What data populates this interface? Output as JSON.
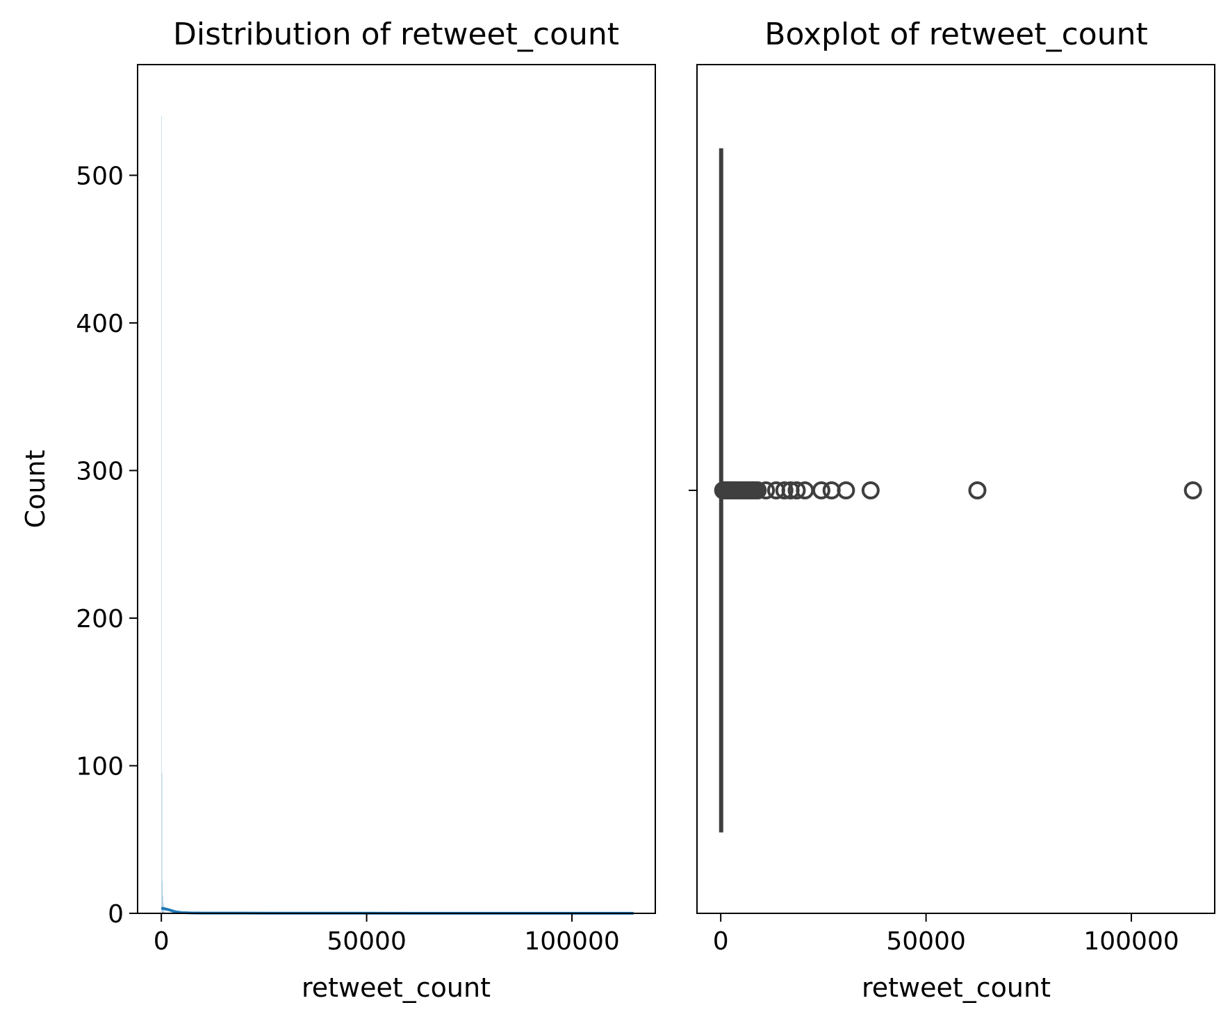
{
  "colors": {
    "hist_fill": "#1f77b4",
    "kde_line": "#1f77b4",
    "box_line": "#3f3f3f",
    "axes": "#000000"
  },
  "chart_data": [
    {
      "type": "histogram",
      "title": "Distribution of retweet_count",
      "xlabel": "retweet_count",
      "ylabel": "Count",
      "xlim": [
        -5780,
        120300
      ],
      "ylim": [
        0,
        575
      ],
      "xticks": [
        0,
        50000,
        100000
      ],
      "yticks": [
        0,
        100,
        200,
        300,
        400,
        500
      ],
      "x_tick_labels": [
        "0",
        "50000",
        "100000"
      ],
      "y_tick_labels": [
        "0",
        "100",
        "200",
        "300",
        "400",
        "500"
      ],
      "bins": [
        {
          "x0": 0,
          "x1": 115,
          "count": 540
        },
        {
          "x0": 115,
          "x1": 230,
          "count": 95
        },
        {
          "x0": 230,
          "x1": 345,
          "count": 22
        },
        {
          "x0": 345,
          "x1": 460,
          "count": 12
        },
        {
          "x0": 460,
          "x1": 575,
          "count": 7
        },
        {
          "x0": 575,
          "x1": 690,
          "count": 5
        }
      ],
      "kde": {
        "x": [
          0,
          1000,
          2000,
          3000,
          4000,
          5000,
          7000,
          10000,
          20000,
          40000,
          60000,
          80000,
          100000,
          115000
        ],
        "y": [
          3.5,
          3.0,
          2.3,
          1.4,
          0.8,
          0.5,
          0.3,
          0.2,
          0.15,
          0.1,
          0.08,
          0.06,
          0.05,
          0.05
        ]
      }
    },
    {
      "type": "boxplot",
      "title": "Boxplot of retweet_count",
      "xlabel": "retweet_count",
      "xlim": [
        -5780,
        120300
      ],
      "xticks": [
        0,
        50000,
        100000
      ],
      "x_tick_labels": [
        "0",
        "50000",
        "100000"
      ],
      "box": {
        "min": 0,
        "q1": 20,
        "median": 60,
        "q3": 180,
        "whisker_high": 420
      },
      "outliers": [
        600,
        900,
        1200,
        1500,
        1800,
        2100,
        2400,
        2800,
        3200,
        3600,
        4000,
        4500,
        5000,
        5500,
        6000,
        6500,
        7000,
        7500,
        8000,
        8500,
        9000,
        11000,
        13500,
        15500,
        17000,
        18500,
        20500,
        24500,
        27000,
        30500,
        36500,
        62500,
        115000
      ]
    }
  ]
}
